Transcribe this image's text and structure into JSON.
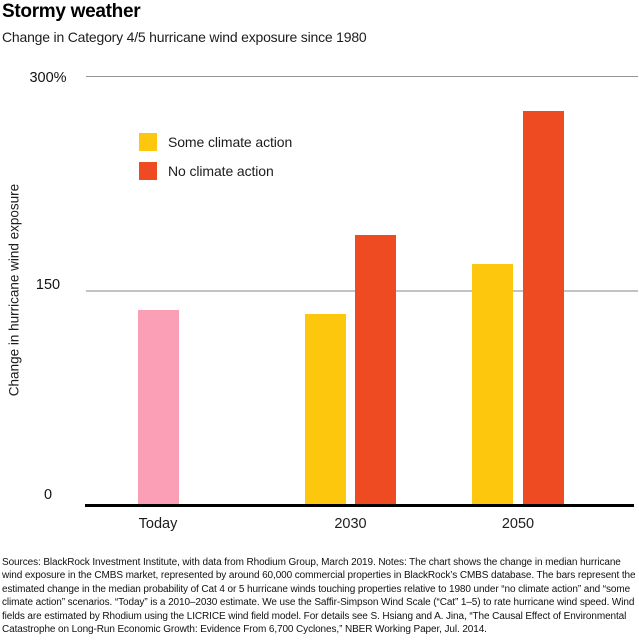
{
  "header": {
    "title": "Stormy weather",
    "subtitle": "Change in Category 4/5 hurricane wind exposure since 1980"
  },
  "legend": {
    "items": [
      {
        "id": "some-climate-action",
        "label": "Some climate action",
        "color": "#FDC70D"
      },
      {
        "id": "no-climate-action",
        "label": "No climate action",
        "color": "#EF4B23"
      }
    ]
  },
  "chart_data": {
    "type": "bar",
    "title": "Stormy weather",
    "subtitle": "Change in Category 4/5 hurricane wind exposure since 1980",
    "ylabel": "Change in hurricane wind exposure",
    "xlabel": "",
    "unit": "%",
    "ylim": [
      0,
      300
    ],
    "grid": "horizontal",
    "legend_position": "top-left-inside",
    "yticks": [
      {
        "value": 0,
        "label": "0"
      },
      {
        "value": 150,
        "label": "150"
      },
      {
        "value": 300,
        "label": "300%"
      }
    ],
    "categories": [
      "Today",
      "2030",
      "2050"
    ],
    "groups": [
      {
        "category": "Today",
        "bars": [
          {
            "series": "today-estimate",
            "color": "#FA9FB5",
            "value": 137
          }
        ]
      },
      {
        "category": "2030",
        "bars": [
          {
            "series": "some-climate-action",
            "color": "#FDC70D",
            "value": 134
          },
          {
            "series": "no-climate-action",
            "color": "#EF4B23",
            "value": 189
          }
        ]
      },
      {
        "category": "2050",
        "bars": [
          {
            "series": "some-climate-action",
            "color": "#FDC70D",
            "value": 169
          },
          {
            "series": "no-climate-action",
            "color": "#EF4B23",
            "value": 276
          }
        ]
      }
    ]
  },
  "footer": {
    "text": "Sources: BlackRock Investment Institute, with data from Rhodium Group, March 2019. Notes: The chart shows the change in median hurricane wind exposure in the CMBS market, represented by around 60,000 commercial properties in BlackRock’s CMBS database. The bars represent the estimated change in the median probability of Cat 4 or 5 hurricane winds touching properties relative to 1980 under “no climate action” and “some climate action” scenarios. “Today” is a 2010–2030 estimate. We use the Saffir-Simpson Wind Scale (“Cat” 1–5) to rate hurricane wind speed. Wind fields are estimated by Rhodium using the LICRICE wind field model. For details see S. Hsiang and A. Jina, “The Causal Effect of Environmental Catastrophe on Long-Run Economic Growth: Evidence From 6,700 Cyclones,” NBER Working Paper, Jul. 2014."
  }
}
